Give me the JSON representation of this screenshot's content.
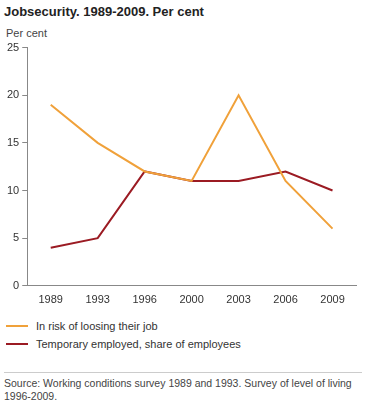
{
  "chart_data": {
    "type": "line",
    "title": "Jobsecurity. 1989-2009. Per cent",
    "ylabel": "Per cent",
    "categories": [
      "1989",
      "1993",
      "1996",
      "2000",
      "2003",
      "2006",
      "2009"
    ],
    "series": [
      {
        "name": "In risk of loosing their job",
        "color": "#f0a13a",
        "values": [
          19,
          15,
          12,
          11,
          20,
          11,
          6
        ]
      },
      {
        "name": "Temporary employed, share of employees",
        "color": "#9b1b23",
        "values": [
          4,
          5,
          12,
          11,
          11,
          12,
          10
        ]
      }
    ],
    "ylim": [
      0,
      25
    ],
    "yticks": [
      0,
      5,
      10,
      15,
      20,
      25
    ],
    "grid": false,
    "legend": "bottom",
    "source": "Source: Working conditions survey 1989 and 1993. Survey of level of living 1996-2009."
  }
}
